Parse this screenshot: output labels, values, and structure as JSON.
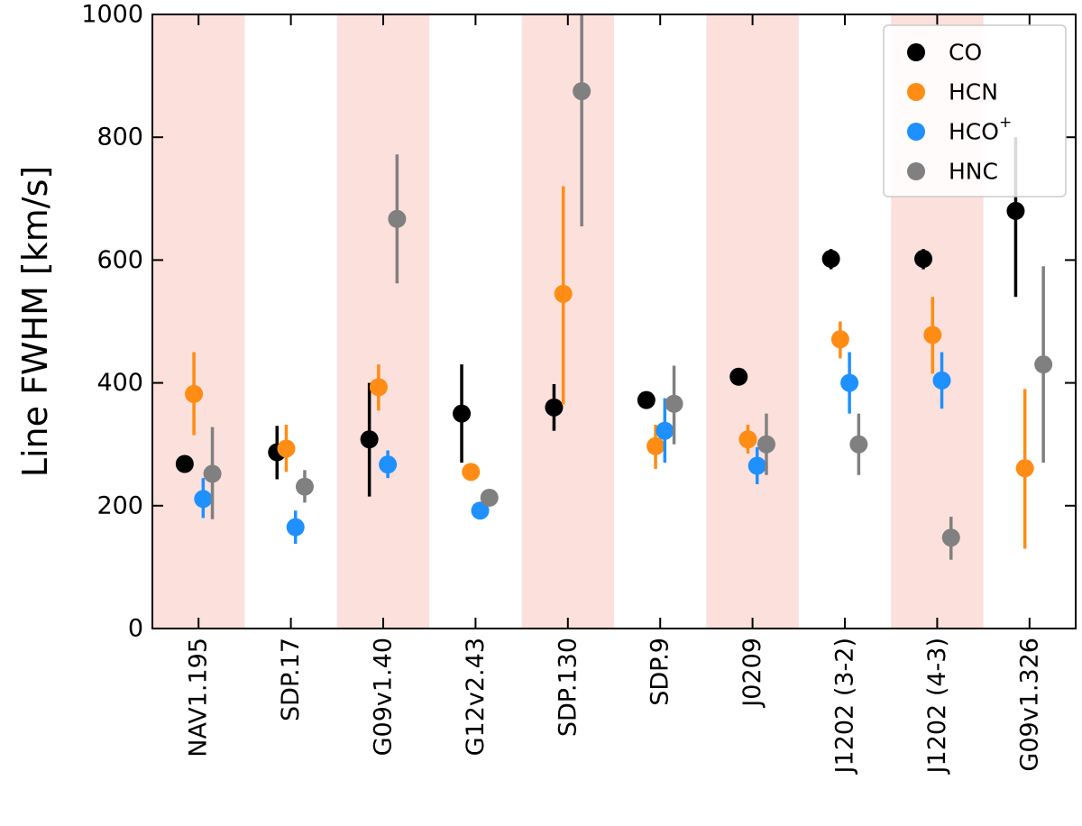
{
  "chart_data": {
    "type": "scatter",
    "title": "",
    "xlabel": "",
    "ylabel": "Line FWHM [km/s]",
    "ylim": [
      0,
      1000
    ],
    "yticks": [
      0,
      200,
      400,
      600,
      800,
      1000
    ],
    "grid": false,
    "legend_position": "top-right",
    "categories": [
      "NAV1.195",
      "SDP.17",
      "G09v1.40",
      "G12v2.43",
      "SDP.130",
      "SDP.9",
      "J0209",
      "J1202 (3-2)",
      "J1202 (4-3)",
      "G09v1.326"
    ],
    "shaded_categories": [
      0,
      2,
      4,
      6,
      8
    ],
    "series": [
      {
        "name": "CO",
        "sup": "",
        "color": "#000000",
        "offset": -0.15,
        "points": [
          {
            "cat": 0,
            "y": 268,
            "lo": 255,
            "hi": 282
          },
          {
            "cat": 1,
            "y": 287,
            "lo": 243,
            "hi": 330
          },
          {
            "cat": 2,
            "y": 308,
            "lo": 215,
            "hi": 400
          },
          {
            "cat": 3,
            "y": 350,
            "lo": 270,
            "hi": 430
          },
          {
            "cat": 4,
            "y": 360,
            "lo": 322,
            "hi": 398
          },
          {
            "cat": 5,
            "y": 372,
            "lo": 365,
            "hi": 380
          },
          {
            "cat": 6,
            "y": 410,
            "lo": 400,
            "hi": 420
          },
          {
            "cat": 7,
            "y": 602,
            "lo": 585,
            "hi": 618
          },
          {
            "cat": 8,
            "y": 602,
            "lo": 585,
            "hi": 618
          },
          {
            "cat": 9,
            "y": 680,
            "lo": 540,
            "hi": 800
          }
        ]
      },
      {
        "name": "HCN",
        "sup": "",
        "color": "#ff8c14",
        "offset": -0.05,
        "points": [
          {
            "cat": 0,
            "y": 382,
            "lo": 315,
            "hi": 450
          },
          {
            "cat": 1,
            "y": 293,
            "lo": 255,
            "hi": 332
          },
          {
            "cat": 2,
            "y": 393,
            "lo": 355,
            "hi": 430
          },
          {
            "cat": 3,
            "y": 255,
            "lo": 245,
            "hi": 265
          },
          {
            "cat": 4,
            "y": 545,
            "lo": 365,
            "hi": 720
          },
          {
            "cat": 5,
            "y": 297,
            "lo": 260,
            "hi": 332
          },
          {
            "cat": 6,
            "y": 308,
            "lo": 285,
            "hi": 332
          },
          {
            "cat": 7,
            "y": 471,
            "lo": 440,
            "hi": 500
          },
          {
            "cat": 8,
            "y": 478,
            "lo": 415,
            "hi": 540
          },
          {
            "cat": 9,
            "y": 261,
            "lo": 130,
            "hi": 390
          }
        ]
      },
      {
        "name": "HCO",
        "sup": "+",
        "color": "#1e90ff",
        "offset": 0.05,
        "points": [
          {
            "cat": 0,
            "y": 211,
            "lo": 180,
            "hi": 245
          },
          {
            "cat": 1,
            "y": 165,
            "lo": 138,
            "hi": 192
          },
          {
            "cat": 2,
            "y": 267,
            "lo": 245,
            "hi": 290
          },
          {
            "cat": 3,
            "y": 192,
            "lo": 178,
            "hi": 205
          },
          {
            "cat": 5,
            "y": 322,
            "lo": 270,
            "hi": 375
          },
          {
            "cat": 6,
            "y": 265,
            "lo": 235,
            "hi": 295
          },
          {
            "cat": 7,
            "y": 400,
            "lo": 350,
            "hi": 450
          },
          {
            "cat": 8,
            "y": 404,
            "lo": 358,
            "hi": 450
          }
        ]
      },
      {
        "name": "HNC",
        "sup": "",
        "color": "#808080",
        "offset": 0.15,
        "points": [
          {
            "cat": 0,
            "y": 252,
            "lo": 178,
            "hi": 328
          },
          {
            "cat": 1,
            "y": 231,
            "lo": 205,
            "hi": 258
          },
          {
            "cat": 2,
            "y": 667,
            "lo": 562,
            "hi": 772
          },
          {
            "cat": 3,
            "y": 213,
            "lo": 203,
            "hi": 223
          },
          {
            "cat": 4,
            "y": 875,
            "lo": 655,
            "hi": 1000
          },
          {
            "cat": 5,
            "y": 366,
            "lo": 300,
            "hi": 428
          },
          {
            "cat": 6,
            "y": 300,
            "lo": 250,
            "hi": 350
          },
          {
            "cat": 7,
            "y": 300,
            "lo": 250,
            "hi": 350
          },
          {
            "cat": 8,
            "y": 148,
            "lo": 112,
            "hi": 182
          },
          {
            "cat": 9,
            "y": 430,
            "lo": 270,
            "hi": 590
          }
        ]
      }
    ]
  }
}
